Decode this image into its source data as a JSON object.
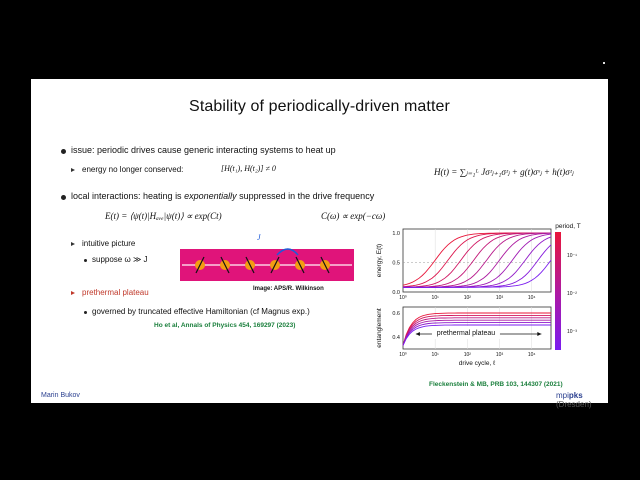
{
  "slide": {
    "title": "Stability of periodically-driven matter",
    "bullet1": "issue: periodic drives cause generic interacting systems to heat up",
    "sub1": "energy no longer conserved:",
    "sub1_math": "[H(t₁), H(t₂)] ≠ 0",
    "hamiltonian": "H(t) = ∑ⱼ₌₁ᴸ Jσᶻⱼ₊₁σᶻⱼ + g(t)σˣⱼ + h(t)σᶻⱼ",
    "bullet2_a": "local interactions: heating is ",
    "bullet2_b": "exponentially",
    "bullet2_c": " suppressed in the drive frequency",
    "eq_energy": "E(t) = ⟨ψ(t)|Hₐᵥₑ|ψ(t)⟩ ∝ exp(Ct)",
    "eq_c": "C(ω) ∝ exp(−cω)",
    "sub2": "intuitive picture",
    "sub2_dot": "suppose ω ≫ J",
    "chain_label": "J",
    "image_credit": "Image: APS/R. Wilkinson",
    "sub3": "prethermal plateau",
    "sub4": "governed by truncated effective Hamiltonian (cf Magnus exp.)",
    "ref1": "Ho et al, Annals of Physics 454, 169297 (2023)",
    "ref2": "Fleckenstein & MB, PRB 103, 144307 (2021)",
    "author": "Marin Bukov",
    "logo_a": "mpi",
    "logo_b": "pks",
    "logo_c": " (Dresden)"
  },
  "chart_data": {
    "type": "line",
    "top_panel": {
      "ylabel": "energy, E(t)",
      "ylim": [
        0,
        1.0
      ],
      "yticks": [
        "1.0",
        "0.5",
        "0.0"
      ]
    },
    "bottom_panel": {
      "ylabel": "entanglement",
      "yticks": [
        "0.6",
        "0.4"
      ],
      "annotation": "prethermal plateau"
    },
    "xlabel": "drive cycle, ℓ",
    "xticks": [
      "10⁰",
      "10¹",
      "10²",
      "10³",
      "10⁴"
    ],
    "colorbar": {
      "label": "period, T",
      "ticks": [
        "10⁻¹",
        "10⁻²",
        "10⁻³"
      ],
      "colors": [
        "#e8163a",
        "#b01aa0",
        "#7a1cf0"
      ]
    },
    "energy_curves_log10_rise": [
      1.0,
      1.4,
      1.8,
      2.2,
      2.6,
      3.0,
      3.4,
      3.8,
      4.2,
      4.6
    ],
    "entanglement_plateaus": [
      0.6,
      0.58,
      0.56,
      0.54,
      0.52,
      0.5
    ]
  },
  "colors": {
    "accent_red": "#c0392b",
    "ref_green": "#1a7f3c",
    "footer_blue": "#2a3f8f",
    "logo_orange": "#d35400"
  }
}
